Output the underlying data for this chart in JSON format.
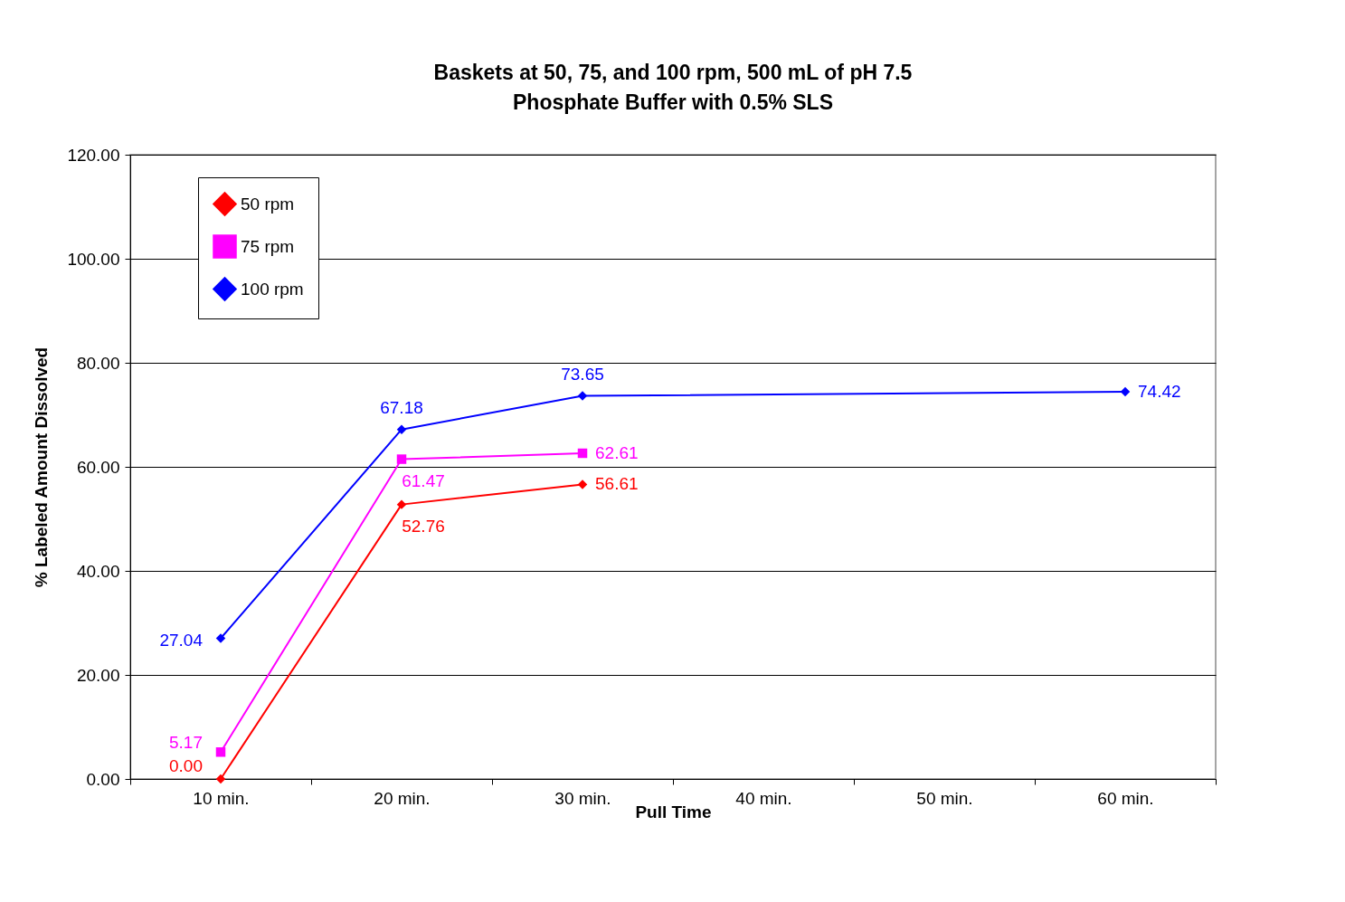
{
  "chart_data": {
    "type": "line",
    "title": "Baskets at 50, 75, and 100 rpm, 500 mL of pH 7.5 Phosphate Buffer with 0.5% SLS",
    "xlabel": "Pull Time",
    "ylabel": "% Labeled Amount Dissolved",
    "categories": [
      "10 min.",
      "20 min.",
      "30 min.",
      "40 min.",
      "50 min.",
      "60 min."
    ],
    "series": [
      {
        "name": "50 rpm",
        "color": "#ff0000",
        "marker": "diamond",
        "values": [
          0,
          52.76,
          56.61,
          null,
          null,
          null
        ],
        "value_labels": [
          "0.00",
          "52.76",
          "56.61",
          null,
          null,
          null
        ]
      },
      {
        "name": "75 rpm",
        "color": "#ff00ff",
        "marker": "square",
        "values": [
          5.17,
          61.47,
          62.61,
          null,
          null,
          null
        ],
        "value_labels": [
          "5.17",
          "61.47",
          "62.61",
          null,
          null,
          null
        ]
      },
      {
        "name": "100 rpm",
        "color": "#0000ff",
        "marker": "diamond",
        "values": [
          27.04,
          67.18,
          73.65,
          null,
          null,
          74.42
        ],
        "value_labels": [
          "27.04",
          "67.18",
          "73.65",
          null,
          null,
          "74.42"
        ]
      }
    ],
    "ylim": [
      0,
      120
    ],
    "yticks": [
      {
        "value": 0,
        "label": "0.00"
      },
      {
        "value": 20,
        "label": "20.00"
      },
      {
        "value": 40,
        "label": "40.00"
      },
      {
        "value": 60,
        "label": "60.00"
      },
      {
        "value": 80,
        "label": "80.00"
      },
      {
        "value": 100,
        "label": "100.00"
      },
      {
        "value": 120,
        "label": "120.00"
      }
    ],
    "grid": "y",
    "legend": "top left",
    "line_style": "solid"
  }
}
